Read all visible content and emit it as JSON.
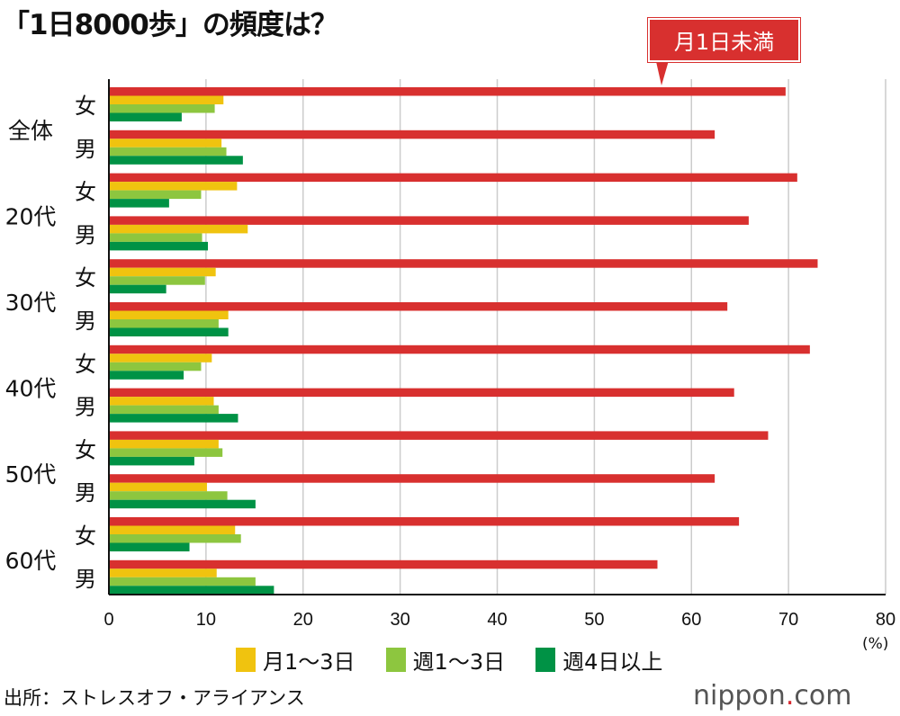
{
  "chart_data": {
    "type": "bar",
    "orientation": "horizontal",
    "title": "「1日8000歩」の頻度は？",
    "groups": [
      "全体",
      "20代",
      "30代",
      "40代",
      "50代",
      "60代"
    ],
    "sexes": [
      "女",
      "男"
    ],
    "series": [
      {
        "name": "月1日未満",
        "color": "#d8302f",
        "values": [
          69.7,
          62.4,
          70.9,
          65.9,
          73.0,
          63.7,
          72.2,
          64.4,
          67.9,
          62.4,
          64.9,
          56.5
        ]
      },
      {
        "name": "月1〜3日",
        "color": "#f0c30f",
        "values": [
          11.8,
          11.6,
          13.2,
          14.3,
          11.0,
          12.3,
          10.6,
          10.8,
          11.3,
          10.1,
          13.0,
          11.1
        ]
      },
      {
        "name": "週1〜3日",
        "color": "#8dc63f",
        "values": [
          10.9,
          12.1,
          9.5,
          9.6,
          9.9,
          11.3,
          9.5,
          11.3,
          11.7,
          12.2,
          13.6,
          15.1
        ]
      },
      {
        "name": "週4日以上",
        "color": "#009245",
        "values": [
          7.5,
          13.8,
          6.2,
          10.2,
          5.9,
          12.3,
          7.7,
          13.3,
          8.8,
          15.1,
          8.3,
          17.0
        ]
      }
    ],
    "xlim": [
      0,
      80
    ],
    "xticks": [
      "0",
      "10",
      "20",
      "30",
      "40",
      "50",
      "60",
      "70",
      "80"
    ],
    "xlabel": "(%)",
    "annotation": "月1日未満",
    "legend_position": "bottom"
  },
  "source": "出所：ストレスオフ・アライアンス",
  "logo": {
    "name": "nippon",
    "dot": ".",
    "suffix": "com"
  }
}
